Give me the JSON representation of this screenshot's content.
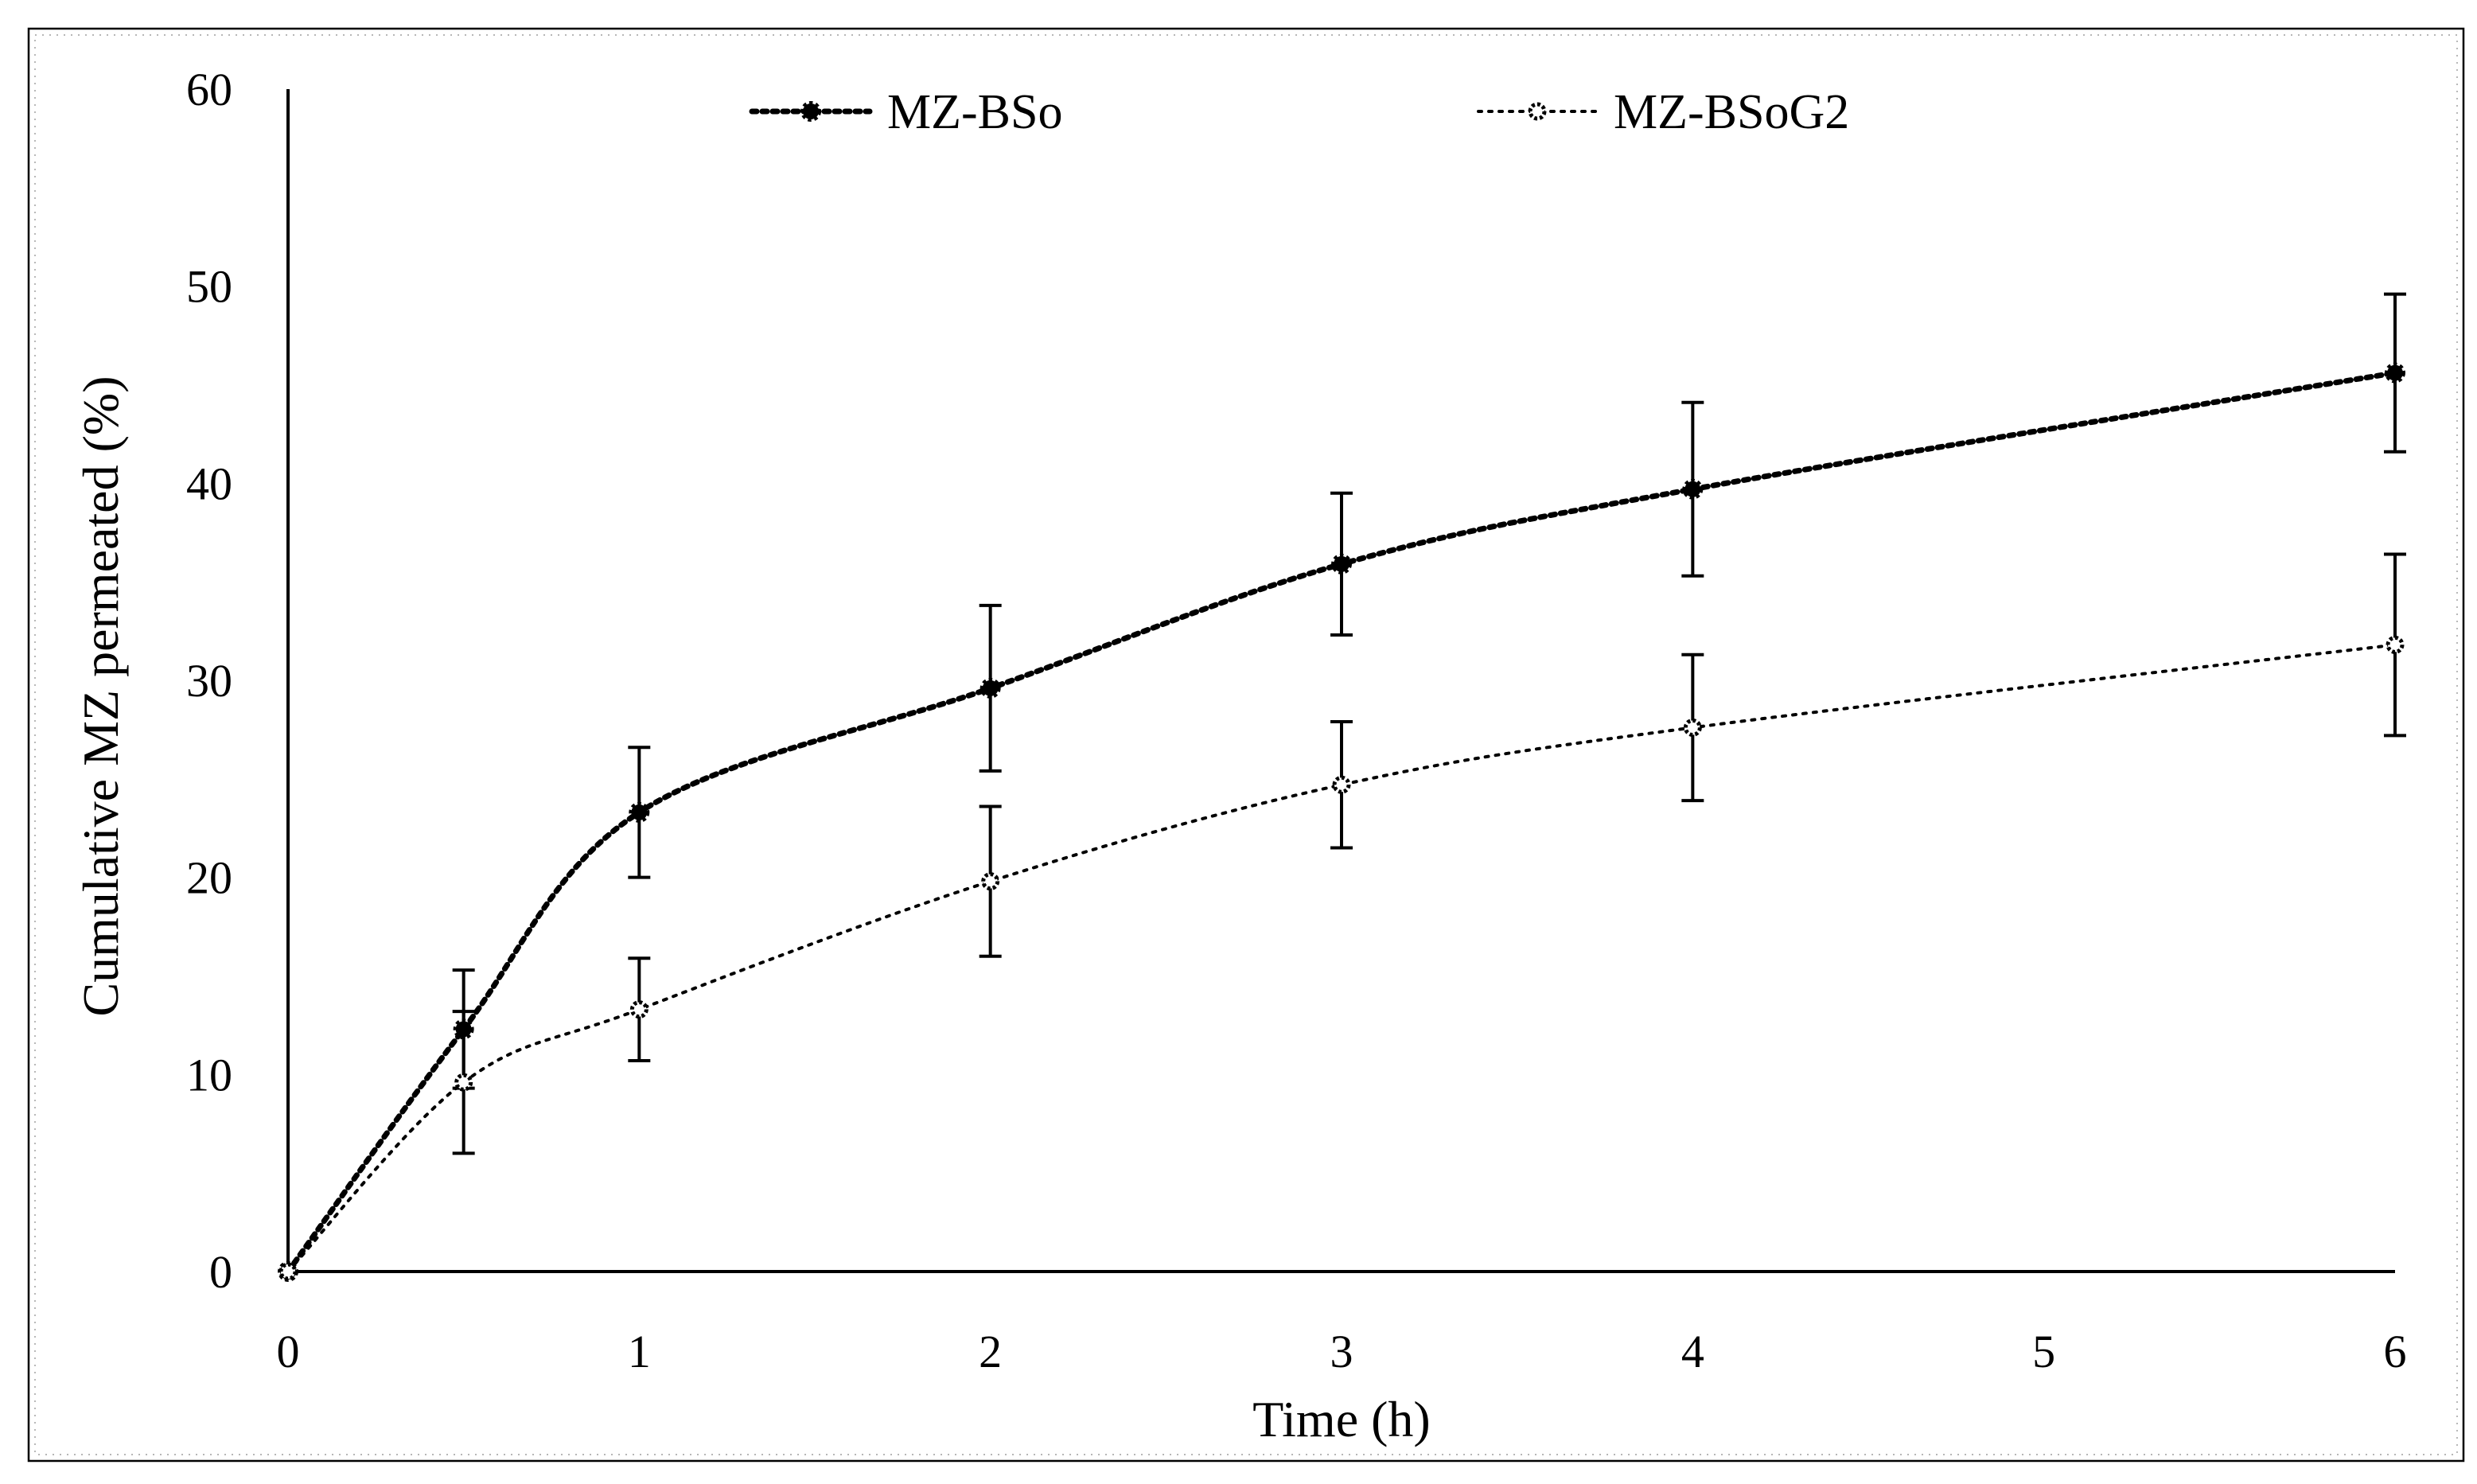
{
  "chart_data": {
    "type": "line",
    "title": "",
    "xlabel": "Time (h)",
    "ylabel": "Cumulative MZ permeated  (%)",
    "xlim": [
      0,
      6
    ],
    "ylim": [
      0,
      60
    ],
    "xticks": [
      0,
      1,
      2,
      3,
      4,
      5,
      6
    ],
    "yticks": [
      0,
      10,
      20,
      30,
      40,
      50,
      60
    ],
    "legend_position": "top",
    "series": [
      {
        "name": "MZ-BSo",
        "marker": "filled",
        "color": "#000000",
        "x": [
          0,
          0.5,
          1,
          2,
          3,
          4,
          6
        ],
        "y": [
          0,
          12.3,
          23.3,
          29.6,
          35.9,
          39.7,
          45.6
        ],
        "error": [
          0,
          3.0,
          3.3,
          4.2,
          3.6,
          4.4,
          4.0
        ]
      },
      {
        "name": "MZ-BSoG2",
        "marker": "open",
        "color": "#000000",
        "x": [
          0,
          0.5,
          1,
          2,
          3,
          4,
          6
        ],
        "y": [
          0,
          9.6,
          13.3,
          19.8,
          24.7,
          27.6,
          31.8
        ],
        "error": [
          0,
          3.6,
          2.6,
          3.8,
          3.2,
          3.7,
          4.6
        ]
      }
    ]
  }
}
